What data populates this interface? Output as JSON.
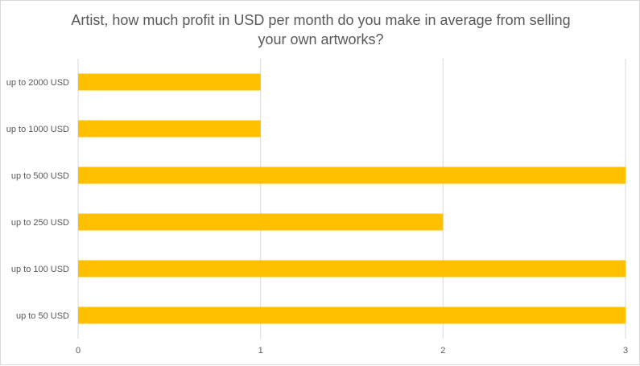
{
  "chart_data": {
    "type": "bar",
    "orientation": "horizontal",
    "title_lines": [
      "Artist, how much profit in USD per month do you make in average from selling",
      "your own artworks?"
    ],
    "categories": [
      "up to 2000 USD",
      "up to 1000 USD",
      "up to 500 USD",
      "up to 250 USD",
      "up to 100 USD",
      "up to 50 USD"
    ],
    "values": [
      1,
      1,
      3,
      2,
      3,
      3
    ],
    "xlim": [
      0,
      3
    ],
    "x_ticks": [
      0,
      1,
      2,
      3
    ],
    "grid": true,
    "bar_color": "#FFC000",
    "grid_color": "#d9d9d9",
    "xlabel": "",
    "ylabel": ""
  }
}
